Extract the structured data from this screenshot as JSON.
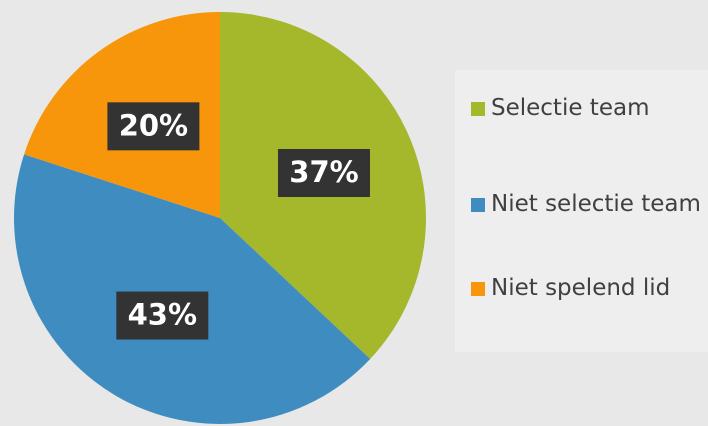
{
  "chart_data": {
    "type": "pie",
    "categories": [
      "Selectie team",
      "Niet selectie team",
      "Niet spelend lid"
    ],
    "values": [
      37,
      43,
      20
    ],
    "value_labels": [
      "37%",
      "43%",
      "20%"
    ],
    "colors": [
      "#a5b72b",
      "#3f8dc0",
      "#f7960a"
    ],
    "legend": "right"
  }
}
